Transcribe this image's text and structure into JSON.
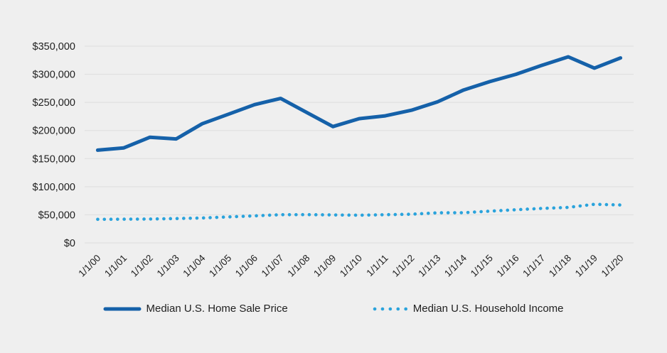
{
  "background_color": "#efefef",
  "grid_color": "#e1e1e1",
  "text_color": "#212121",
  "chart_data": {
    "type": "line",
    "title": "",
    "xlabel": "",
    "ylabel": "",
    "grid": true,
    "legend_position": "bottom",
    "ylim": [
      0,
      350000
    ],
    "ytick_interval": 50000,
    "ytick_labels": [
      "$0",
      "$50,000",
      "$100,000",
      "$150,000",
      "$200,000",
      "$250,000",
      "$300,000",
      "$350,000"
    ],
    "categories": [
      "1/1/00",
      "1/1/01",
      "1/1/02",
      "1/1/03",
      "1/1/04",
      "1/1/05",
      "1/1/06",
      "1/1/07",
      "1/1/08",
      "1/1/09",
      "1/1/10",
      "1/1/11",
      "1/1/12",
      "1/1/13",
      "1/1/14",
      "1/1/15",
      "1/1/16",
      "1/1/17",
      "1/1/18",
      "1/1/19",
      "1/1/20"
    ],
    "series": [
      {
        "name": "Median U.S. Home Sale Price",
        "style": "solid",
        "color": "#1561a9",
        "values": [
          165000,
          169000,
          188000,
          185000,
          212000,
          229000,
          246000,
          257000,
          232000,
          207000,
          221000,
          226000,
          236000,
          251000,
          272000,
          287000,
          300000,
          316000,
          331000,
          311000,
          329000
        ]
      },
      {
        "name": "Median U.S. Household Income",
        "style": "dotted",
        "color": "#2aa3dc",
        "values": [
          42000,
          42200,
          42400,
          43300,
          44300,
          46300,
          48200,
          50200,
          50300,
          49800,
          49300,
          50100,
          51000,
          53600,
          53700,
          56500,
          59000,
          61400,
          63200,
          68700,
          67500
        ]
      }
    ]
  }
}
